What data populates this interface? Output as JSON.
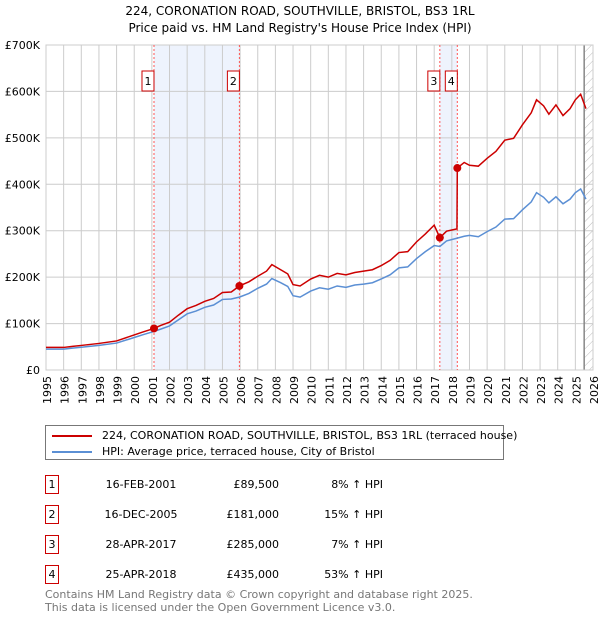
{
  "chart_data": {
    "type": "line",
    "title": "224, CORONATION ROAD, SOUTHVILLE, BRISTOL, BS3 1RL",
    "subtitle": "Price paid vs. HM Land Registry's House Price Index (HPI)",
    "xlim": [
      1995,
      2026
    ],
    "ylim": [
      0,
      700000
    ],
    "x_ticks": [
      "1995",
      "1996",
      "1997",
      "1998",
      "1999",
      "2000",
      "2001",
      "2002",
      "2003",
      "2004",
      "2005",
      "2006",
      "2007",
      "2008",
      "2009",
      "2010",
      "2011",
      "2012",
      "2013",
      "2014",
      "2015",
      "2016",
      "2017",
      "2018",
      "2019",
      "2020",
      "2021",
      "2022",
      "2023",
      "2024",
      "2025",
      "2026"
    ],
    "y_ticks": [
      {
        "v": 0,
        "label": "£0"
      },
      {
        "v": 100000,
        "label": "£100K"
      },
      {
        "v": 200000,
        "label": "£200K"
      },
      {
        "v": 300000,
        "label": "£300K"
      },
      {
        "v": 400000,
        "label": "£400K"
      },
      {
        "v": 500000,
        "label": "£500K"
      },
      {
        "v": 600000,
        "label": "£600K"
      },
      {
        "v": 700000,
        "label": "£700K"
      }
    ],
    "grid": true,
    "colors": {
      "price": "#cc0000",
      "hpi": "#5b8fd4",
      "shade": "#eef3fd",
      "marker_line": "#ff5555"
    },
    "series": [
      {
        "name": "224, CORONATION ROAD, SOUTHVILLE, BRISTOL, BS3 1RL (terraced house)",
        "points": [
          [
            1995,
            48.6
          ],
          [
            1996,
            48.6
          ],
          [
            1996.5,
            50.8
          ],
          [
            1997,
            52.9
          ],
          [
            1998,
            57.2
          ],
          [
            1999,
            62.6
          ],
          [
            2000,
            75.6
          ],
          [
            2000.5,
            82
          ],
          [
            2001.12,
            89.5
          ],
          [
            2001.5,
            96
          ],
          [
            2002,
            103
          ],
          [
            2002.5,
            118
          ],
          [
            2003,
            132
          ],
          [
            2003.5,
            139
          ],
          [
            2004,
            148
          ],
          [
            2004.5,
            154
          ],
          [
            2005,
            167
          ],
          [
            2005.5,
            168
          ],
          [
            2005.96,
            181
          ],
          [
            2006.5,
            190
          ],
          [
            2007,
            202
          ],
          [
            2007.5,
            213
          ],
          [
            2007.8,
            227
          ],
          [
            2008.3,
            216
          ],
          [
            2008.7,
            207
          ],
          [
            2009,
            184
          ],
          [
            2009.4,
            181
          ],
          [
            2010,
            196
          ],
          [
            2010.5,
            204
          ],
          [
            2011,
            200
          ],
          [
            2011.5,
            208
          ],
          [
            2012,
            205
          ],
          [
            2012.5,
            210
          ],
          [
            2013,
            213
          ],
          [
            2013.5,
            216
          ],
          [
            2014,
            225
          ],
          [
            2014.5,
            236
          ],
          [
            2015,
            253
          ],
          [
            2015.5,
            255
          ],
          [
            2016,
            276
          ],
          [
            2016.5,
            293
          ],
          [
            2017,
            312
          ],
          [
            2017.32,
            285
          ],
          [
            2017.7,
            299
          ],
          [
            2018.29,
            304
          ],
          [
            2018.31,
            435
          ],
          [
            2018.7,
            447
          ],
          [
            2019,
            441
          ],
          [
            2019.5,
            439
          ],
          [
            2020,
            456
          ],
          [
            2020.5,
            471
          ],
          [
            2021,
            495
          ],
          [
            2021.5,
            499
          ],
          [
            2022,
            528
          ],
          [
            2022.5,
            554
          ],
          [
            2022.8,
            582
          ],
          [
            2023.2,
            569
          ],
          [
            2023.5,
            551
          ],
          [
            2023.9,
            571
          ],
          [
            2024.3,
            548
          ],
          [
            2024.7,
            563
          ],
          [
            2025,
            582
          ],
          [
            2025.3,
            594
          ],
          [
            2025.6,
            563
          ]
        ]
      },
      {
        "name": "HPI: Average price, terraced house, City of Bristol",
        "points": [
          [
            1995,
            45
          ],
          [
            1996,
            45
          ],
          [
            1996.5,
            47
          ],
          [
            1997,
            49
          ],
          [
            1998,
            53
          ],
          [
            1999,
            58
          ],
          [
            2000,
            70
          ],
          [
            2000.5,
            76
          ],
          [
            2001.12,
            83
          ],
          [
            2001.5,
            88
          ],
          [
            2002,
            95
          ],
          [
            2002.5,
            108
          ],
          [
            2003,
            121
          ],
          [
            2003.5,
            127
          ],
          [
            2004,
            135
          ],
          [
            2004.5,
            140
          ],
          [
            2005,
            152
          ],
          [
            2005.5,
            153
          ],
          [
            2005.96,
            157
          ],
          [
            2006.5,
            165
          ],
          [
            2007,
            176
          ],
          [
            2007.5,
            185
          ],
          [
            2007.8,
            197
          ],
          [
            2008.3,
            188
          ],
          [
            2008.7,
            180
          ],
          [
            2009,
            160
          ],
          [
            2009.4,
            157
          ],
          [
            2010,
            170
          ],
          [
            2010.5,
            177
          ],
          [
            2011,
            174
          ],
          [
            2011.5,
            181
          ],
          [
            2012,
            178
          ],
          [
            2012.5,
            183
          ],
          [
            2013,
            185
          ],
          [
            2013.5,
            188
          ],
          [
            2014,
            196
          ],
          [
            2014.5,
            205
          ],
          [
            2015,
            220
          ],
          [
            2015.5,
            222
          ],
          [
            2016,
            240
          ],
          [
            2016.5,
            255
          ],
          [
            2017,
            268
          ],
          [
            2017.32,
            266
          ],
          [
            2017.7,
            278
          ],
          [
            2018.31,
            284
          ],
          [
            2018.7,
            288
          ],
          [
            2019,
            290
          ],
          [
            2019.5,
            287
          ],
          [
            2020,
            298
          ],
          [
            2020.5,
            308
          ],
          [
            2021,
            325
          ],
          [
            2021.5,
            326
          ],
          [
            2022,
            345
          ],
          [
            2022.5,
            362
          ],
          [
            2022.8,
            382
          ],
          [
            2023.2,
            372
          ],
          [
            2023.5,
            360
          ],
          [
            2023.9,
            373
          ],
          [
            2024.3,
            358
          ],
          [
            2024.7,
            368
          ],
          [
            2025,
            382
          ],
          [
            2025.3,
            390
          ],
          [
            2025.6,
            368
          ]
        ]
      }
    ],
    "sales": [
      {
        "n": "1",
        "x": 2001.12,
        "value": 89500,
        "date": "16-FEB-2001",
        "price": "£89,500",
        "hpi": "8% ↑ HPI"
      },
      {
        "n": "2",
        "x": 2005.96,
        "value": 181000,
        "date": "16-DEC-2005",
        "price": "£181,000",
        "hpi": "15% ↑ HPI"
      },
      {
        "n": "3",
        "x": 2017.32,
        "value": 285000,
        "date": "28-APR-2017",
        "price": "£285,000",
        "hpi": "7% ↑ HPI"
      },
      {
        "n": "4",
        "x": 2018.31,
        "value": 435000,
        "date": "25-APR-2018",
        "price": "£435,000",
        "hpi": "53% ↑ HPI"
      }
    ],
    "shaded_ranges": [
      [
        2001.12,
        2005.96
      ],
      [
        2017.32,
        2018.31
      ]
    ],
    "forecast_from": 2025.5
  },
  "footer": {
    "line1": "Contains HM Land Registry data © Crown copyright and database right 2025.",
    "line2": "This data is licensed under the Open Government Licence v3.0."
  }
}
